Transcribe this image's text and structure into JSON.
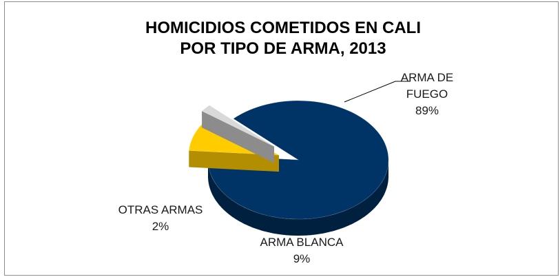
{
  "chart_data": {
    "type": "pie",
    "title": [
      "HOMICIDIOS COMETIDOS EN CALI",
      "POR TIPO DE ARMA, 2013"
    ],
    "slices": [
      {
        "label": [
          "ARMA DE",
          "FUEGO"
        ],
        "value": 89,
        "value_label": "89%",
        "color": "#003366",
        "side_color": "#00203f",
        "exploded": false
      },
      {
        "label": [
          "ARMA BLANCA"
        ],
        "value": 9,
        "value_label": "9%",
        "color": "#ffcc00",
        "side_color": "#b38f00",
        "exploded": true
      },
      {
        "label": [
          "OTRAS ARMAS"
        ],
        "value": 2,
        "value_label": "2%",
        "color": "#d9d9d9",
        "side_color": "#8c8c8c",
        "exploded": true
      }
    ],
    "style": "3d-pie",
    "legend": "none",
    "data_labels": "category-and-percent"
  }
}
